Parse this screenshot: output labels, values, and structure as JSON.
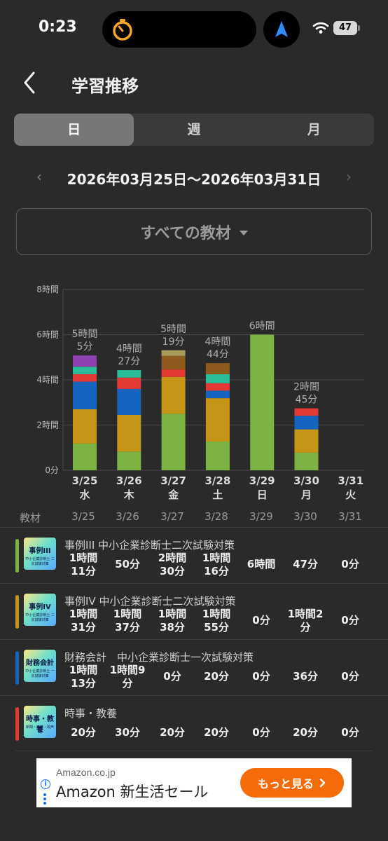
{
  "status_bar": {
    "time": "0:23",
    "battery": "47"
  },
  "header": {
    "title": "学習推移"
  },
  "tabs": [
    {
      "label": "日",
      "active": true
    },
    {
      "label": "週",
      "active": false
    },
    {
      "label": "月",
      "active": false
    }
  ],
  "date_nav": {
    "prev": "‹",
    "range": "2026年03月25日〜2026年03月31日",
    "next": "›"
  },
  "material_filter": {
    "label": "すべての教材"
  },
  "chart_data": {
    "type": "bar",
    "stacked": true,
    "y_unit": "hours",
    "ylim": [
      0,
      8
    ],
    "y_ticks": [
      {
        "value": 0,
        "label": "0分"
      },
      {
        "value": 2,
        "label": "2時間"
      },
      {
        "value": 4,
        "label": "4時間"
      },
      {
        "value": 6,
        "label": "6時間"
      },
      {
        "value": 8,
        "label": "8時間"
      }
    ],
    "categories": [
      "3/25",
      "3/26",
      "3/27",
      "3/28",
      "3/29",
      "3/30",
      "3/31"
    ],
    "weekdays": [
      "水",
      "木",
      "金",
      "土",
      "日",
      "月",
      "火"
    ],
    "totals": [
      "5時間\n5分",
      "4時間\n27分",
      "5時間\n19分",
      "4時間\n44分",
      "6時間",
      "2時間\n45分",
      ""
    ],
    "series": [
      {
        "color": "#7cb342",
        "values": [
          1.18,
          0.83,
          2.5,
          1.27,
          6.0,
          0.78,
          0
        ]
      },
      {
        "color": "#c49516",
        "values": [
          1.52,
          1.62,
          1.63,
          1.92,
          0,
          1.03,
          0
        ]
      },
      {
        "color": "#1565c0",
        "values": [
          1.22,
          1.15,
          0,
          0.33,
          0,
          0.6,
          0
        ]
      },
      {
        "color": "#e53935",
        "values": [
          0.33,
          0.5,
          0.33,
          0.33,
          0,
          0.33,
          0
        ]
      },
      {
        "color": "#2bbd9a",
        "values": [
          0.33,
          0.33,
          0,
          0.4,
          0,
          0,
          0
        ]
      },
      {
        "color": "#8e5a1e",
        "values": [
          0,
          0,
          0.6,
          0.49,
          0,
          0,
          0
        ]
      },
      {
        "color": "#a89a5a",
        "values": [
          0,
          0,
          0.25,
          0,
          0,
          0,
          0
        ]
      },
      {
        "color": "#8e3fb0",
        "values": [
          0.5,
          0,
          0,
          0,
          0,
          0,
          0
        ]
      }
    ]
  },
  "table": {
    "first_header": "教材",
    "dates": [
      "3/25",
      "3/26",
      "3/27",
      "3/28",
      "3/29",
      "3/30",
      "3/31"
    ],
    "rows": [
      {
        "name": "事例III 中小企業診断士二次試験対策",
        "color": "#7cb342",
        "thumb_title": "事例III",
        "thumb_sub": "中小企業診断士\n二次試験対策",
        "values": [
          "1時間\n11分",
          "50分",
          "2時間\n30分",
          "1時間\n16分",
          "6時間",
          "47分",
          "0分"
        ]
      },
      {
        "name": "事例IV 中小企業診断士二次試験対策",
        "color": "#c49516",
        "thumb_title": "事例IV",
        "thumb_sub": "中小企業診断士\n二次試験対策",
        "values": [
          "1時間\n31分",
          "1時間\n37分",
          "1時間\n38分",
          "1時間\n55分",
          "0分",
          "1時間2\n分",
          "0分"
        ]
      },
      {
        "name": "財務会計　中小企業診断士一次試験対策",
        "color": "#1565c0",
        "thumb_title": "財務会計",
        "thumb_sub": "中小企業診断士\n一次試験対策",
        "values": [
          "1時間\n13分",
          "1時間9\n分",
          "0分",
          "20分",
          "0分",
          "36分",
          "0分"
        ]
      },
      {
        "name": "時事・教養",
        "color": "#e53935",
        "thumb_title": "時事・教養",
        "thumb_sub": "新聞・雑誌・政声問",
        "values": [
          "20分",
          "30分",
          "20分",
          "20分",
          "0分",
          "20分",
          "0分"
        ]
      }
    ]
  },
  "ad": {
    "domain": "Amazon.co.jp",
    "title": "Amazon 新生活セール",
    "cta": "もっと見る"
  },
  "icons": {
    "timer": "timer-icon",
    "navigation": "navigation-arrow-icon",
    "wifi": "wifi-icon",
    "back": "chevron-left-icon"
  }
}
